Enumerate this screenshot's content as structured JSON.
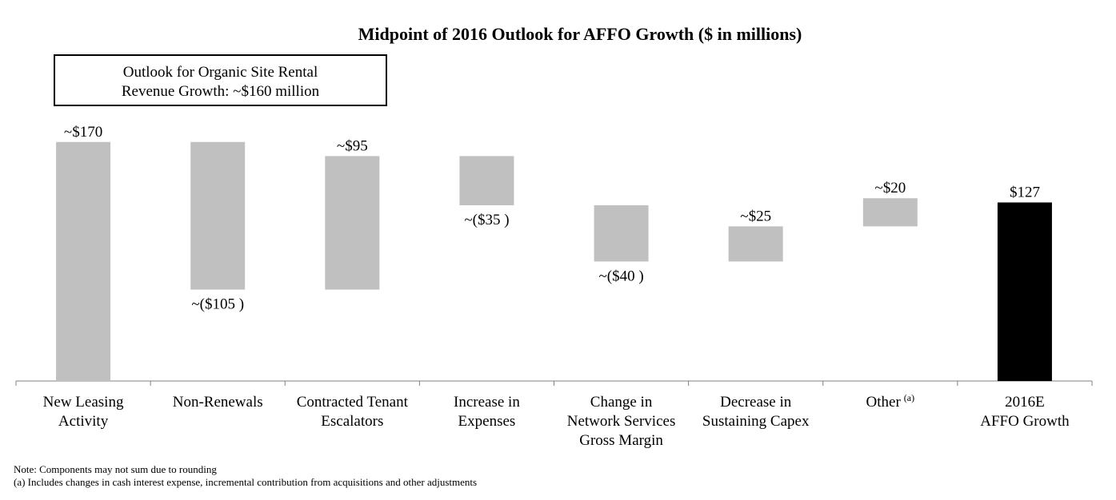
{
  "chart_data": {
    "type": "bar",
    "subtype": "waterfall",
    "title": "Midpoint of 2016 Outlook for AFFO Growth ($ in millions)",
    "callout": {
      "line1": "Outlook for Organic Site Rental",
      "line2": "Revenue Growth: ~$160 million"
    },
    "steps": [
      {
        "category": [
          "New Leasing",
          "Activity"
        ],
        "value": 170,
        "label": "~$170",
        "kind": "increase"
      },
      {
        "category": [
          "Non-Renewals"
        ],
        "value": -105,
        "label": "~($105 )",
        "kind": "decrease"
      },
      {
        "category": [
          "Contracted Tenant",
          "Escalators"
        ],
        "value": 95,
        "label": "~$95",
        "kind": "increase"
      },
      {
        "category": [
          "Increase in",
          "Expenses"
        ],
        "value": -35,
        "label": "~($35 )",
        "kind": "decrease"
      },
      {
        "category": [
          "Change in",
          "Network Services",
          "Gross Margin"
        ],
        "value": -40,
        "label": "~($40 )",
        "kind": "decrease"
      },
      {
        "category": [
          "Decrease in",
          "Sustaining Capex"
        ],
        "value": 25,
        "label": "~$25",
        "kind": "increase"
      },
      {
        "category": [
          "Other"
        ],
        "category_sup": "(a)",
        "value": 20,
        "label": "~$20",
        "kind": "increase"
      },
      {
        "category": [
          "2016E",
          "AFFO Growth"
        ],
        "value": 127,
        "label": "$127",
        "kind": "total"
      }
    ],
    "colors": {
      "step": "#c0c0c0",
      "total": "#000000",
      "axis": "#808080"
    },
    "ylim": [
      0,
      175
    ]
  },
  "notes": {
    "line1": "Note: Components may not sum due to rounding",
    "line2": "(a) Includes changes in cash interest expense, incremental contribution  from acquisitions  and other adjustments"
  }
}
